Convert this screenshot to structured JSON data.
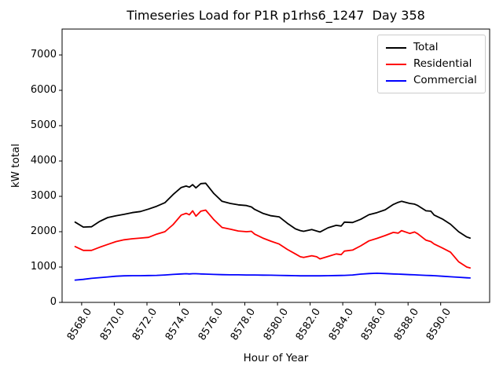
{
  "chart_data": {
    "type": "line",
    "title": "Timeseries Load for P1R p1rhs6_1247  Day 358",
    "xlabel": "Hour of Year",
    "ylabel": "kW total",
    "grid": false,
    "legend": {
      "position": "upper right",
      "border_color": "#cccccc"
    },
    "xlim": [
      8566.8,
      8593.0
    ],
    "ylim": [
      0,
      7733
    ],
    "x_tick_rotation_deg": 57,
    "x_ticks": {
      "values": [
        8568,
        8570,
        8572,
        8574,
        8576,
        8578,
        8580,
        8582,
        8584,
        8586,
        8588,
        8590
      ],
      "labels": [
        "8568.0",
        "8570.0",
        "8572.0",
        "8574.0",
        "8576.0",
        "8578.0",
        "8580.0",
        "8582.0",
        "8584.0",
        "8586.0",
        "8588.0",
        "8590.0"
      ]
    },
    "y_ticks": {
      "values": [
        0,
        1000,
        2000,
        3000,
        4000,
        5000,
        6000,
        7000
      ],
      "labels": [
        "0",
        "1000",
        "2000",
        "3000",
        "4000",
        "5000",
        "6000",
        "7000"
      ]
    },
    "x": [
      8567.6,
      8568.1,
      8568.6,
      8569.1,
      8569.6,
      8570.1,
      8570.6,
      8571.1,
      8571.6,
      8572.1,
      8572.6,
      8573.1,
      8573.6,
      8574.1,
      8574.4,
      8574.6,
      8574.8,
      8575.0,
      8575.3,
      8575.6,
      8576.1,
      8576.6,
      8577.1,
      8577.6,
      8578.1,
      8578.4,
      8578.6,
      8579.1,
      8579.6,
      8580.1,
      8580.6,
      8581.1,
      8581.4,
      8581.6,
      8582.1,
      8582.4,
      8582.6,
      8583.1,
      8583.6,
      8583.9,
      8584.1,
      8584.6,
      8585.1,
      8585.6,
      8586.1,
      8586.6,
      8587.1,
      8587.4,
      8587.6,
      8588.1,
      8588.4,
      8588.6,
      8589.1,
      8589.4,
      8589.6,
      8590.1,
      8590.6,
      8591.1,
      8591.6,
      8591.8
    ],
    "series": [
      {
        "name": "Total",
        "color": "#000000",
        "values": [
          2270,
          2130,
          2140,
          2290,
          2400,
          2450,
          2490,
          2540,
          2570,
          2640,
          2720,
          2820,
          3050,
          3250,
          3290,
          3260,
          3330,
          3240,
          3360,
          3370,
          3080,
          2860,
          2800,
          2760,
          2740,
          2700,
          2630,
          2520,
          2450,
          2420,
          2240,
          2080,
          2030,
          2010,
          2060,
          2020,
          1990,
          2110,
          2180,
          2160,
          2270,
          2260,
          2350,
          2480,
          2540,
          2620,
          2770,
          2830,
          2860,
          2800,
          2780,
          2740,
          2590,
          2580,
          2470,
          2360,
          2210,
          2000,
          1850,
          1820
        ]
      },
      {
        "name": "Residential",
        "color": "#ff0000",
        "values": [
          1580,
          1470,
          1470,
          1560,
          1640,
          1720,
          1770,
          1800,
          1820,
          1840,
          1930,
          2000,
          2200,
          2470,
          2520,
          2480,
          2590,
          2440,
          2580,
          2610,
          2340,
          2120,
          2070,
          2020,
          2000,
          2010,
          1930,
          1820,
          1730,
          1650,
          1500,
          1370,
          1290,
          1270,
          1320,
          1290,
          1230,
          1300,
          1370,
          1350,
          1450,
          1480,
          1600,
          1740,
          1810,
          1890,
          1980,
          1960,
          2030,
          1950,
          1990,
          1940,
          1760,
          1720,
          1650,
          1540,
          1420,
          1150,
          1000,
          975
        ]
      },
      {
        "name": "Commercial",
        "color": "#0000ff",
        "values": [
          630,
          650,
          680,
          700,
          720,
          740,
          750,
          755,
          755,
          760,
          765,
          775,
          790,
          805,
          810,
          805,
          810,
          810,
          805,
          800,
          790,
          785,
          780,
          780,
          775,
          775,
          775,
          770,
          768,
          765,
          760,
          755,
          752,
          750,
          750,
          750,
          750,
          755,
          760,
          762,
          765,
          775,
          800,
          815,
          825,
          815,
          805,
          800,
          795,
          785,
          780,
          775,
          765,
          760,
          755,
          740,
          725,
          710,
          695,
          690
        ]
      }
    ]
  }
}
